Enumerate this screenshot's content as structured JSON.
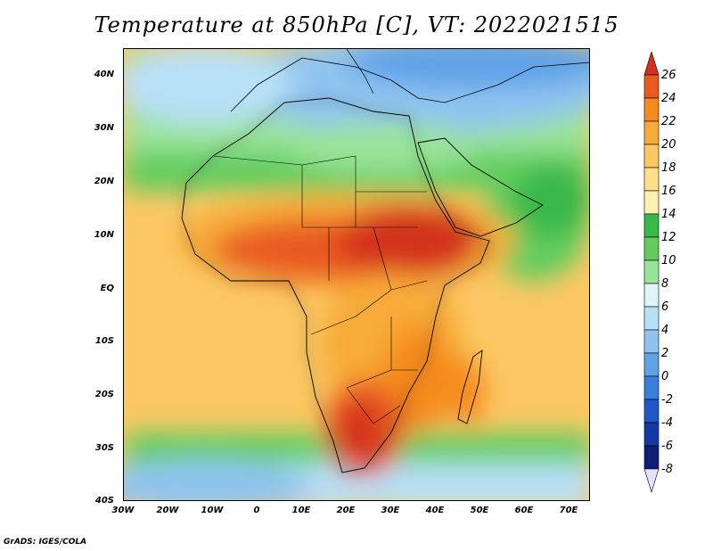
{
  "title": "Temperature at 850hPa [C], VT: 2022021515",
  "credit": "GrADS: IGES/COLA",
  "map": {
    "lat_labels": [
      "40N",
      "30N",
      "20N",
      "10N",
      "EQ",
      "10S",
      "20S",
      "30S",
      "40S"
    ],
    "lon_labels": [
      "30W",
      "20W",
      "10W",
      "0",
      "10E",
      "20E",
      "30E",
      "40E",
      "50E",
      "60E",
      "70E"
    ],
    "lon_range": [
      -30,
      75
    ],
    "lat_range": [
      -40,
      45
    ]
  },
  "colorbar": {
    "levels": [
      "26",
      "24",
      "22",
      "20",
      "18",
      "16",
      "14",
      "12",
      "10",
      "8",
      "6",
      "4",
      "2",
      "0",
      "-2",
      "-4",
      "-6",
      "-8"
    ],
    "colors": [
      "#d3301b",
      "#e95a21",
      "#f58a1d",
      "#f8ab38",
      "#fcc864",
      "#fde089",
      "#fef1b0",
      "#38b848",
      "#62cd5e",
      "#9ae49a",
      "#ddf5f8",
      "#b8e0f8",
      "#8fc4f0",
      "#5ea2e8",
      "#3a7fdd",
      "#2158c8",
      "#1538a4",
      "#0f1f78",
      "#e4e2ff"
    ]
  }
}
